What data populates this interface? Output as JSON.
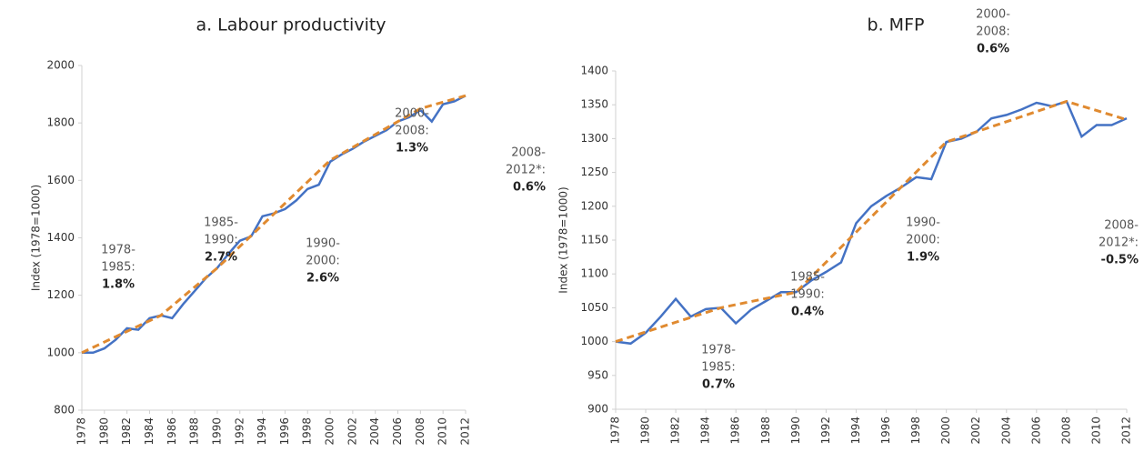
{
  "chart_data": [
    {
      "type": "line",
      "title": "a.   Labour productivity",
      "y_label": "Index (1978=1000)",
      "xlim": [
        1978,
        2012
      ],
      "ylim": [
        800,
        2000
      ],
      "xticks": [
        1978,
        1980,
        1982,
        1984,
        1986,
        1988,
        1990,
        1992,
        1994,
        1996,
        1998,
        2000,
        2002,
        2004,
        2006,
        2008,
        2010,
        2012
      ],
      "yticks": [
        800,
        1000,
        1200,
        1400,
        1600,
        1800,
        2000
      ],
      "series": [
        {
          "color": "#4472c4",
          "dash": false,
          "x": [
            1978,
            1979,
            1980,
            1981,
            1982,
            1983,
            1984,
            1985,
            1986,
            1987,
            1988,
            1989,
            1990,
            1991,
            1992,
            1993,
            1994,
            1995,
            1996,
            1997,
            1998,
            1999,
            2000,
            2001,
            2002,
            2003,
            2004,
            2005,
            2006,
            2007,
            2008,
            2009,
            2010,
            2011,
            2012
          ],
          "values": [
            1000,
            1000,
            1015,
            1045,
            1085,
            1080,
            1120,
            1130,
            1120,
            1170,
            1215,
            1260,
            1295,
            1345,
            1390,
            1405,
            1475,
            1485,
            1500,
            1530,
            1570,
            1585,
            1665,
            1690,
            1710,
            1735,
            1755,
            1775,
            1805,
            1820,
            1845,
            1805,
            1865,
            1875,
            1895
          ]
        },
        {
          "color": "#e08a30",
          "dash": true,
          "x": [
            1978,
            1985,
            1990,
            2000,
            2008,
            2012
          ],
          "values": [
            1000,
            1130,
            1295,
            1670,
            1850,
            1895
          ]
        }
      ],
      "annotations": [
        {
          "lines": [
            "1978-",
            "1985:",
            "1.8%"
          ]
        },
        {
          "lines": [
            "1985-",
            "1990:",
            "2.7%"
          ]
        },
        {
          "lines": [
            "1990-",
            "2000:",
            "2.6%"
          ]
        },
        {
          "lines": [
            "2000-",
            "2008:",
            "1.3%"
          ]
        },
        {
          "lines": [
            "2008-",
            "2012*:",
            "0.6%"
          ]
        }
      ]
    },
    {
      "type": "line",
      "title": "b.   MFP",
      "y_label": "Index (1978=1000)",
      "xlim": [
        1978,
        2012
      ],
      "ylim": [
        900,
        1400
      ],
      "xticks": [
        1978,
        1980,
        1982,
        1984,
        1986,
        1988,
        1990,
        1992,
        1994,
        1996,
        1998,
        2000,
        2002,
        2004,
        2006,
        2008,
        2010,
        2012
      ],
      "yticks": [
        900,
        950,
        1000,
        1050,
        1100,
        1150,
        1200,
        1250,
        1300,
        1350,
        1400
      ],
      "series": [
        {
          "color": "#4472c4",
          "dash": false,
          "x": [
            1978,
            1979,
            1980,
            1981,
            1982,
            1983,
            1984,
            1985,
            1986,
            1987,
            1988,
            1989,
            1990,
            1991,
            1992,
            1993,
            1994,
            1995,
            1996,
            1997,
            1998,
            1999,
            2000,
            2001,
            2002,
            2003,
            2004,
            2005,
            2006,
            2007,
            2008,
            2009,
            2010,
            2011,
            2012
          ],
          "values": [
            1000,
            997,
            1013,
            1037,
            1063,
            1037,
            1048,
            1050,
            1027,
            1047,
            1060,
            1073,
            1073,
            1090,
            1103,
            1117,
            1175,
            1200,
            1215,
            1228,
            1243,
            1240,
            1295,
            1300,
            1310,
            1330,
            1335,
            1343,
            1353,
            1348,
            1355,
            1303,
            1320,
            1320,
            1330
          ]
        },
        {
          "color": "#e08a30",
          "dash": true,
          "x": [
            1978,
            1985,
            1990,
            2000,
            2008,
            2012
          ],
          "values": [
            1000,
            1050,
            1073,
            1295,
            1355,
            1328
          ]
        }
      ],
      "annotations": [
        {
          "lines": [
            "1978-",
            "1985:",
            "0.7%"
          ]
        },
        {
          "lines": [
            "1985-",
            "1990:",
            "0.4%"
          ]
        },
        {
          "lines": [
            "1990-",
            "2000:",
            "1.9%"
          ]
        },
        {
          "lines": [
            "2000-",
            "2008:",
            "0.6%"
          ]
        },
        {
          "lines": [
            "2008-",
            "2012*:",
            "-0.5%"
          ]
        }
      ]
    }
  ]
}
